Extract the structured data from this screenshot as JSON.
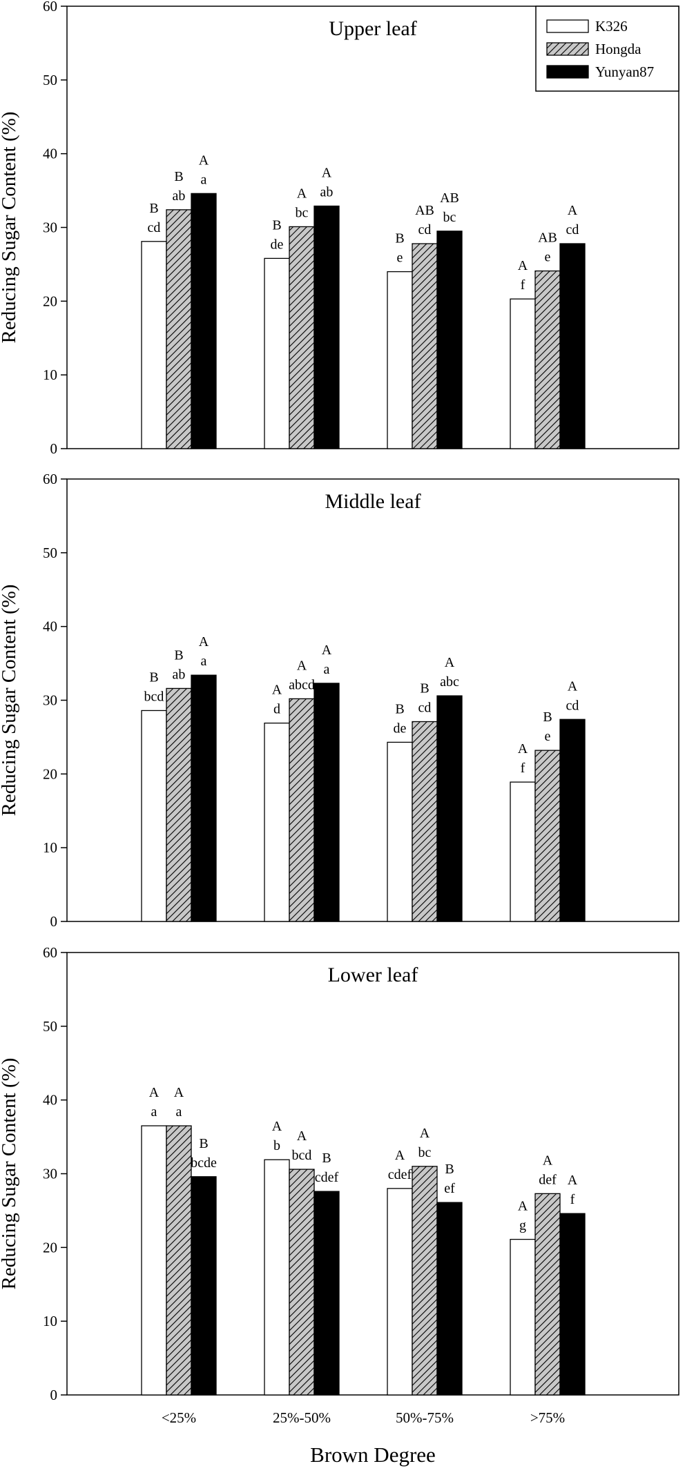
{
  "chart_data": {
    "x_title": "Brown Degree",
    "categories": [
      "<25%",
      "25%-50%",
      "50%-75%",
      ">75%"
    ],
    "series_names": [
      "K326",
      "Hongda",
      "Yunyan87"
    ],
    "colors": {
      "K326": "#ffffff",
      "Hongda": "#c8c8c8",
      "Yunyan87": "#000000",
      "stroke": "#000000",
      "hatch": "#000000"
    },
    "panels": [
      {
        "type": "bar",
        "title": "Upper leaf",
        "ylabel": "Reducing Sugar Content (%)",
        "ylim": [
          0,
          60
        ],
        "yticks": [
          "0",
          "10",
          "20",
          "30",
          "40",
          "50",
          "60"
        ],
        "legend": {
          "position": "top-right",
          "entries": [
            "K326",
            "Hongda",
            "Yunyan87"
          ]
        },
        "series": [
          {
            "name": "K326",
            "values": [
              28.1,
              25.8,
              24.0,
              20.3
            ],
            "labels": [
              [
                "B",
                "cd"
              ],
              [
                "B",
                "de"
              ],
              [
                "B",
                "e"
              ],
              [
                "A",
                "f"
              ]
            ]
          },
          {
            "name": "Hongda",
            "values": [
              32.4,
              30.1,
              27.8,
              24.1
            ],
            "labels": [
              [
                "B",
                "ab"
              ],
              [
                "A",
                "bc"
              ],
              [
                "AB",
                "cd"
              ],
              [
                "AB",
                "e"
              ]
            ]
          },
          {
            "name": "Yunyan87",
            "values": [
              34.6,
              32.9,
              29.5,
              27.8
            ],
            "labels": [
              [
                "A",
                "a"
              ],
              [
                "A",
                "ab"
              ],
              [
                "AB",
                "bc"
              ],
              [
                "A",
                "cd"
              ]
            ]
          }
        ]
      },
      {
        "type": "bar",
        "title": "Middle leaf",
        "ylabel": "Reducing Sugar Content (%)",
        "ylim": [
          0,
          60
        ],
        "yticks": [
          "0",
          "10",
          "20",
          "30",
          "40",
          "50",
          "60"
        ],
        "series": [
          {
            "name": "K326",
            "values": [
              28.6,
              26.9,
              24.3,
              18.9
            ],
            "labels": [
              [
                "B",
                "bcd"
              ],
              [
                "A",
                "d"
              ],
              [
                "B",
                "de"
              ],
              [
                "A",
                "f"
              ]
            ]
          },
          {
            "name": "Hongda",
            "values": [
              31.6,
              30.2,
              27.1,
              23.2
            ],
            "labels": [
              [
                "B",
                "ab"
              ],
              [
                "A",
                "abcd"
              ],
              [
                "B",
                "cd"
              ],
              [
                "B",
                "e"
              ]
            ]
          },
          {
            "name": "Yunyan87",
            "values": [
              33.4,
              32.3,
              30.6,
              27.4
            ],
            "labels": [
              [
                "A",
                "a"
              ],
              [
                "A",
                "a"
              ],
              [
                "A",
                "abc"
              ],
              [
                "A",
                "cd"
              ]
            ]
          }
        ]
      },
      {
        "type": "bar",
        "title": "Lower leaf",
        "ylabel": "Reducing Sugar Content (%)",
        "ylim": [
          0,
          60
        ],
        "yticks": [
          "0",
          "10",
          "20",
          "30",
          "40",
          "50",
          "60"
        ],
        "series": [
          {
            "name": "K326",
            "values": [
              36.5,
              31.9,
              28.0,
              21.1
            ],
            "labels": [
              [
                "A",
                "a"
              ],
              [
                "A",
                "b"
              ],
              [
                "A",
                "cdef"
              ],
              [
                "A",
                "g"
              ]
            ]
          },
          {
            "name": "Hongda",
            "values": [
              36.5,
              30.6,
              31.0,
              27.3
            ],
            "labels": [
              [
                "A",
                "a"
              ],
              [
                "A",
                "bcd"
              ],
              [
                "A",
                "bc"
              ],
              [
                "A",
                "def"
              ]
            ]
          },
          {
            "name": "Yunyan87",
            "values": [
              29.6,
              27.6,
              26.1,
              24.6
            ],
            "labels": [
              [
                "B",
                "bcde"
              ],
              [
                "B",
                "cdef"
              ],
              [
                "B",
                "ef"
              ],
              [
                "A",
                "f"
              ]
            ]
          }
        ]
      }
    ]
  }
}
